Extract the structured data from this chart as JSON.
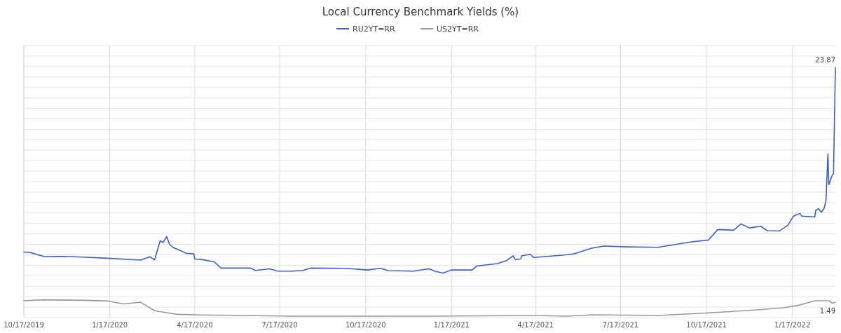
{
  "chart_data": {
    "type": "line",
    "title": "Local Currency Benchmark Yields (%)",
    "legend": "top",
    "grid": true,
    "xlim": [
      "2019-10-17",
      "2022-03-04"
    ],
    "xticks": [
      {
        "value": "2019-10-17",
        "label": "10/17/2019"
      },
      {
        "value": "2020-01-17",
        "label": "1/17/2020"
      },
      {
        "value": "2020-04-17",
        "label": "4/17/2020"
      },
      {
        "value": "2020-07-17",
        "label": "7/17/2020"
      },
      {
        "value": "2020-10-17",
        "label": "10/17/2020"
      },
      {
        "value": "2021-01-17",
        "label": "1/17/2021"
      },
      {
        "value": "2021-04-17",
        "label": "4/17/2021"
      },
      {
        "value": "2021-07-17",
        "label": "7/17/2021"
      },
      {
        "value": "2021-10-17",
        "label": "10/17/2021"
      },
      {
        "value": "2022-01-17",
        "label": "1/17/2022"
      }
    ],
    "ylim": [
      0,
      26
    ],
    "yticks": [
      {
        "value": 0,
        "label": null
      },
      {
        "value": 1,
        "label": null
      },
      {
        "value": 2,
        "label": null
      },
      {
        "value": 3,
        "label": null
      },
      {
        "value": 4,
        "label": null
      },
      {
        "value": 5,
        "label": null
      },
      {
        "value": 6,
        "label": null
      },
      {
        "value": 7,
        "label": null
      },
      {
        "value": 8,
        "label": null
      },
      {
        "value": 9,
        "label": null
      },
      {
        "value": 10,
        "label": null
      },
      {
        "value": 11,
        "label": null
      },
      {
        "value": 12,
        "label": null
      },
      {
        "value": 13,
        "label": null
      },
      {
        "value": 14,
        "label": null
      },
      {
        "value": 15,
        "label": null
      },
      {
        "value": 16,
        "label": null
      },
      {
        "value": 17,
        "label": null
      },
      {
        "value": 18,
        "label": null
      },
      {
        "value": 19,
        "label": null
      },
      {
        "value": 20,
        "label": null
      },
      {
        "value": 21,
        "label": null
      },
      {
        "value": 22,
        "label": null
      },
      {
        "value": 23,
        "label": null
      },
      {
        "value": 24,
        "label": null
      },
      {
        "value": 25,
        "label": null
      },
      {
        "value": 26,
        "label": null
      }
    ],
    "series": [
      {
        "name": "RU2YT=RR",
        "color": "#3a5fc8",
        "x": [
          "2019-10-17",
          "2019-10-24",
          "2019-11-08",
          "2019-11-28",
          "2019-12-15",
          "2020-01-15",
          "2020-02-19",
          "2020-02-29",
          "2020-03-05",
          "2020-03-11",
          "2020-03-14",
          "2020-03-18",
          "2020-03-21",
          "2020-03-25",
          "2020-04-01",
          "2020-04-08",
          "2020-04-16",
          "2020-04-17",
          "2020-04-23",
          "2020-05-08",
          "2020-05-15",
          "2020-06-16",
          "2020-06-21",
          "2020-07-06",
          "2020-07-15",
          "2020-07-30",
          "2020-08-11",
          "2020-08-19",
          "2020-09-24",
          "2020-10-19",
          "2020-11-02",
          "2020-11-10",
          "2020-12-07",
          "2020-12-24",
          "2020-12-31",
          "2021-01-08",
          "2021-01-17",
          "2021-02-08",
          "2021-02-13",
          "2021-03-07",
          "2021-03-17",
          "2021-03-24",
          "2021-03-26",
          "2021-04-01",
          "2021-04-02",
          "2021-04-11",
          "2021-04-15",
          "2021-05-20",
          "2021-05-29",
          "2021-06-16",
          "2021-06-29",
          "2021-07-23",
          "2021-08-26",
          "2021-10-01",
          "2021-10-19",
          "2021-10-29",
          "2021-11-15",
          "2021-11-23",
          "2021-12-02",
          "2021-12-14",
          "2021-12-21",
          "2022-01-03",
          "2022-01-12",
          "2022-01-18",
          "2022-01-25",
          "2022-01-27",
          "2022-02-10",
          "2022-02-11",
          "2022-02-14",
          "2022-02-17",
          "2022-02-20",
          "2022-02-22",
          "2022-02-24",
          "2022-02-25",
          "2022-02-28",
          "2022-03-02",
          "2022-03-04"
        ],
        "values": [
          6.27,
          6.21,
          5.83,
          5.85,
          5.8,
          5.67,
          5.49,
          5.82,
          5.51,
          7.35,
          7.17,
          7.75,
          6.99,
          6.7,
          6.43,
          6.14,
          6.1,
          5.6,
          5.57,
          5.33,
          4.73,
          4.73,
          4.51,
          4.66,
          4.44,
          4.44,
          4.51,
          4.73,
          4.71,
          4.55,
          4.71,
          4.49,
          4.44,
          4.66,
          4.4,
          4.26,
          4.55,
          4.55,
          4.93,
          5.16,
          5.45,
          5.9,
          5.56,
          5.6,
          5.9,
          6.05,
          5.74,
          6.0,
          6.11,
          6.63,
          6.83,
          6.76,
          6.72,
          7.24,
          7.41,
          8.42,
          8.35,
          8.95,
          8.57,
          8.73,
          8.31,
          8.28,
          8.8,
          9.69,
          9.96,
          9.69,
          9.62,
          10.25,
          10.4,
          10.07,
          10.47,
          11.25,
          15.65,
          12.7,
          13.48,
          13.8,
          23.87
        ],
        "value_labels": [
          null,
          null,
          null,
          null,
          null,
          null,
          null,
          null,
          null,
          null,
          null,
          null,
          null,
          null,
          null,
          null,
          null,
          null,
          null,
          null,
          null,
          null,
          null,
          null,
          null,
          null,
          null,
          null,
          null,
          null,
          null,
          null,
          null,
          null,
          null,
          null,
          null,
          null,
          null,
          null,
          null,
          null,
          null,
          null,
          null,
          null,
          null,
          null,
          null,
          null,
          null,
          null,
          null,
          null,
          null,
          null,
          null,
          null,
          null,
          null,
          null,
          null,
          null,
          null,
          null,
          null,
          null,
          null,
          null,
          null,
          null,
          null,
          null,
          null,
          null,
          null,
          "23.87"
        ]
      },
      {
        "name": "US2YT=RR",
        "color": "#999999",
        "x": [
          "2019-10-17",
          "2019-11-08",
          "2019-12-22",
          "2020-01-15",
          "2020-02-01",
          "2020-02-19",
          "2020-03-05",
          "2020-03-18",
          "2020-03-29",
          "2020-04-23",
          "2020-06-11",
          "2020-07-30",
          "2020-12-24",
          "2021-04-17",
          "2021-05-20",
          "2021-06-18",
          "2021-08-26",
          "2021-10-14",
          "2021-12-02",
          "2022-01-08",
          "2022-01-25",
          "2022-02-10",
          "2022-02-25",
          "2022-03-01",
          "2022-03-04"
        ],
        "values": [
          1.61,
          1.7,
          1.65,
          1.58,
          1.31,
          1.47,
          0.65,
          0.47,
          0.31,
          0.25,
          0.2,
          0.13,
          0.13,
          0.2,
          0.13,
          0.27,
          0.2,
          0.42,
          0.69,
          0.94,
          1.2,
          1.61,
          1.61,
          1.36,
          1.49
        ],
        "value_labels": [
          null,
          null,
          null,
          null,
          null,
          null,
          null,
          null,
          null,
          null,
          null,
          null,
          null,
          null,
          null,
          null,
          null,
          null,
          null,
          null,
          null,
          null,
          null,
          null,
          "1.49"
        ]
      }
    ]
  }
}
